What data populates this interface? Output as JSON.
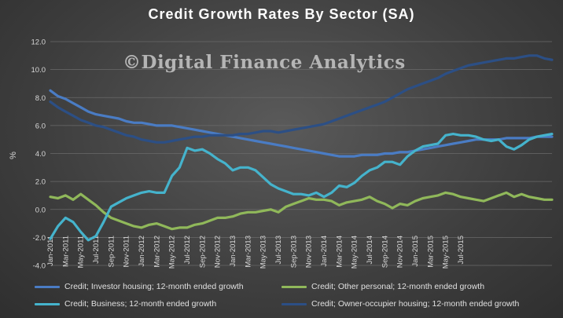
{
  "colors": {
    "investor": "#4a7cc4",
    "other_personal": "#90b85a",
    "business": "#45b3cc",
    "owner_occupier": "#2c4f85"
  },
  "chart_data": {
    "type": "line",
    "title": "Credit  Growth  Rates  By  Sector  (SA)",
    "watermark": "©Digital Finance Analytics",
    "ylabel": "%",
    "ylim": [
      -4.0,
      12.0
    ],
    "yticks": [
      "12.0",
      "10.0",
      "8.0",
      "6.0",
      "4.0",
      "2.0",
      "0.0",
      "-2.0",
      "-4.0"
    ],
    "ytick_values": [
      12,
      10,
      8,
      6,
      4,
      2,
      0,
      -2,
      -4
    ],
    "grid": true,
    "legend": "bottom",
    "xtick_labels": [
      "Jan-2011",
      "Mar-2011",
      "May-2011",
      "Jul-2011",
      "Sep-2011",
      "Nov-2011",
      "Jan-2012",
      "Mar-2012",
      "May-2012",
      "Jul-2012",
      "Sep-2012",
      "Nov-2012",
      "Jan-2013",
      "Mar-2013",
      "May-2013",
      "Jul-2013",
      "Sep-2013",
      "Nov-2013",
      "Jan-2014",
      "Mar-2014",
      "May-2014",
      "Jul-2014",
      "Sep-2014",
      "Nov-2014",
      "Jan-2015",
      "Mar-2015",
      "May-2015",
      "Jul-2015"
    ],
    "series": [
      {
        "name": "Credit; Investor housing; 12-month ended growth",
        "color_key": "investor",
        "values": [
          8.5,
          8.1,
          7.9,
          7.6,
          7.3,
          7.0,
          6.8,
          6.7,
          6.6,
          6.5,
          6.3,
          6.2,
          6.2,
          6.1,
          6.0,
          6.0,
          6.0,
          5.9,
          5.8,
          5.7,
          5.6,
          5.5,
          5.4,
          5.3,
          5.2,
          5.1,
          5.0,
          4.9,
          4.8,
          4.7,
          4.6,
          4.5,
          4.4,
          4.3,
          4.2,
          4.1,
          4.0,
          3.9,
          3.8,
          3.8,
          3.8,
          3.9,
          3.9,
          3.9,
          4.0,
          4.0,
          4.1,
          4.1,
          4.2,
          4.3,
          4.4,
          4.5,
          4.6,
          4.7,
          4.8,
          4.9,
          5.0,
          5.0,
          5.0,
          5.0,
          5.1,
          5.1,
          5.1,
          5.1,
          5.2,
          5.2,
          5.2
        ]
      },
      {
        "name": "Credit; Other personal; 12-month ended growth",
        "color_key": "other_personal",
        "values": [
          0.9,
          0.8,
          1.0,
          0.7,
          1.1,
          0.7,
          0.3,
          -0.2,
          -0.6,
          -0.8,
          -1.0,
          -1.2,
          -1.3,
          -1.1,
          -1.0,
          -1.2,
          -1.4,
          -1.3,
          -1.3,
          -1.1,
          -1.0,
          -0.8,
          -0.6,
          -0.6,
          -0.5,
          -0.3,
          -0.2,
          -0.2,
          -0.1,
          0.0,
          -0.2,
          0.2,
          0.4,
          0.6,
          0.8,
          0.7,
          0.7,
          0.6,
          0.3,
          0.5,
          0.6,
          0.7,
          0.9,
          0.6,
          0.4,
          0.1,
          0.4,
          0.3,
          0.6,
          0.8,
          0.9,
          1.0,
          1.2,
          1.1,
          0.9,
          0.8,
          0.7,
          0.6,
          0.8,
          1.0,
          1.2,
          0.9,
          1.1,
          0.9,
          0.8,
          0.7,
          0.7
        ]
      },
      {
        "name": "Credit; Business; 12-month ended growth",
        "color_key": "business",
        "values": [
          -2.1,
          -1.2,
          -0.6,
          -0.9,
          -1.6,
          -2.2,
          -1.9,
          -0.9,
          0.2,
          0.5,
          0.8,
          1.0,
          1.2,
          1.3,
          1.2,
          1.2,
          2.4,
          3.0,
          4.4,
          4.2,
          4.3,
          4.0,
          3.6,
          3.3,
          2.8,
          3.0,
          3.0,
          2.8,
          2.3,
          1.8,
          1.5,
          1.3,
          1.1,
          1.1,
          1.0,
          1.2,
          0.9,
          1.2,
          1.7,
          1.6,
          1.9,
          2.4,
          2.8,
          3.0,
          3.4,
          3.4,
          3.2,
          3.8,
          4.2,
          4.5,
          4.6,
          4.7,
          5.3,
          5.4,
          5.3,
          5.3,
          5.2,
          5.0,
          4.9,
          5.0,
          4.5,
          4.3,
          4.6,
          5.0,
          5.2,
          5.3,
          5.4
        ]
      },
      {
        "name": "Credit; Owner-occupier housing; 12-month ended growth",
        "color_key": "owner_occupier",
        "values": [
          7.7,
          7.3,
          7.0,
          6.7,
          6.4,
          6.2,
          6.0,
          5.9,
          5.7,
          5.5,
          5.3,
          5.2,
          5.0,
          4.9,
          4.8,
          4.8,
          4.9,
          5.0,
          5.1,
          5.2,
          5.2,
          5.3,
          5.3,
          5.3,
          5.3,
          5.4,
          5.4,
          5.5,
          5.6,
          5.6,
          5.5,
          5.6,
          5.7,
          5.8,
          5.9,
          6.0,
          6.1,
          6.3,
          6.5,
          6.7,
          6.9,
          7.1,
          7.3,
          7.5,
          7.7,
          8.0,
          8.3,
          8.6,
          8.8,
          9.0,
          9.2,
          9.4,
          9.7,
          9.9,
          10.1,
          10.3,
          10.4,
          10.5,
          10.6,
          10.7,
          10.8,
          10.8,
          10.9,
          11.0,
          11.0,
          10.8,
          10.7
        ]
      }
    ]
  }
}
